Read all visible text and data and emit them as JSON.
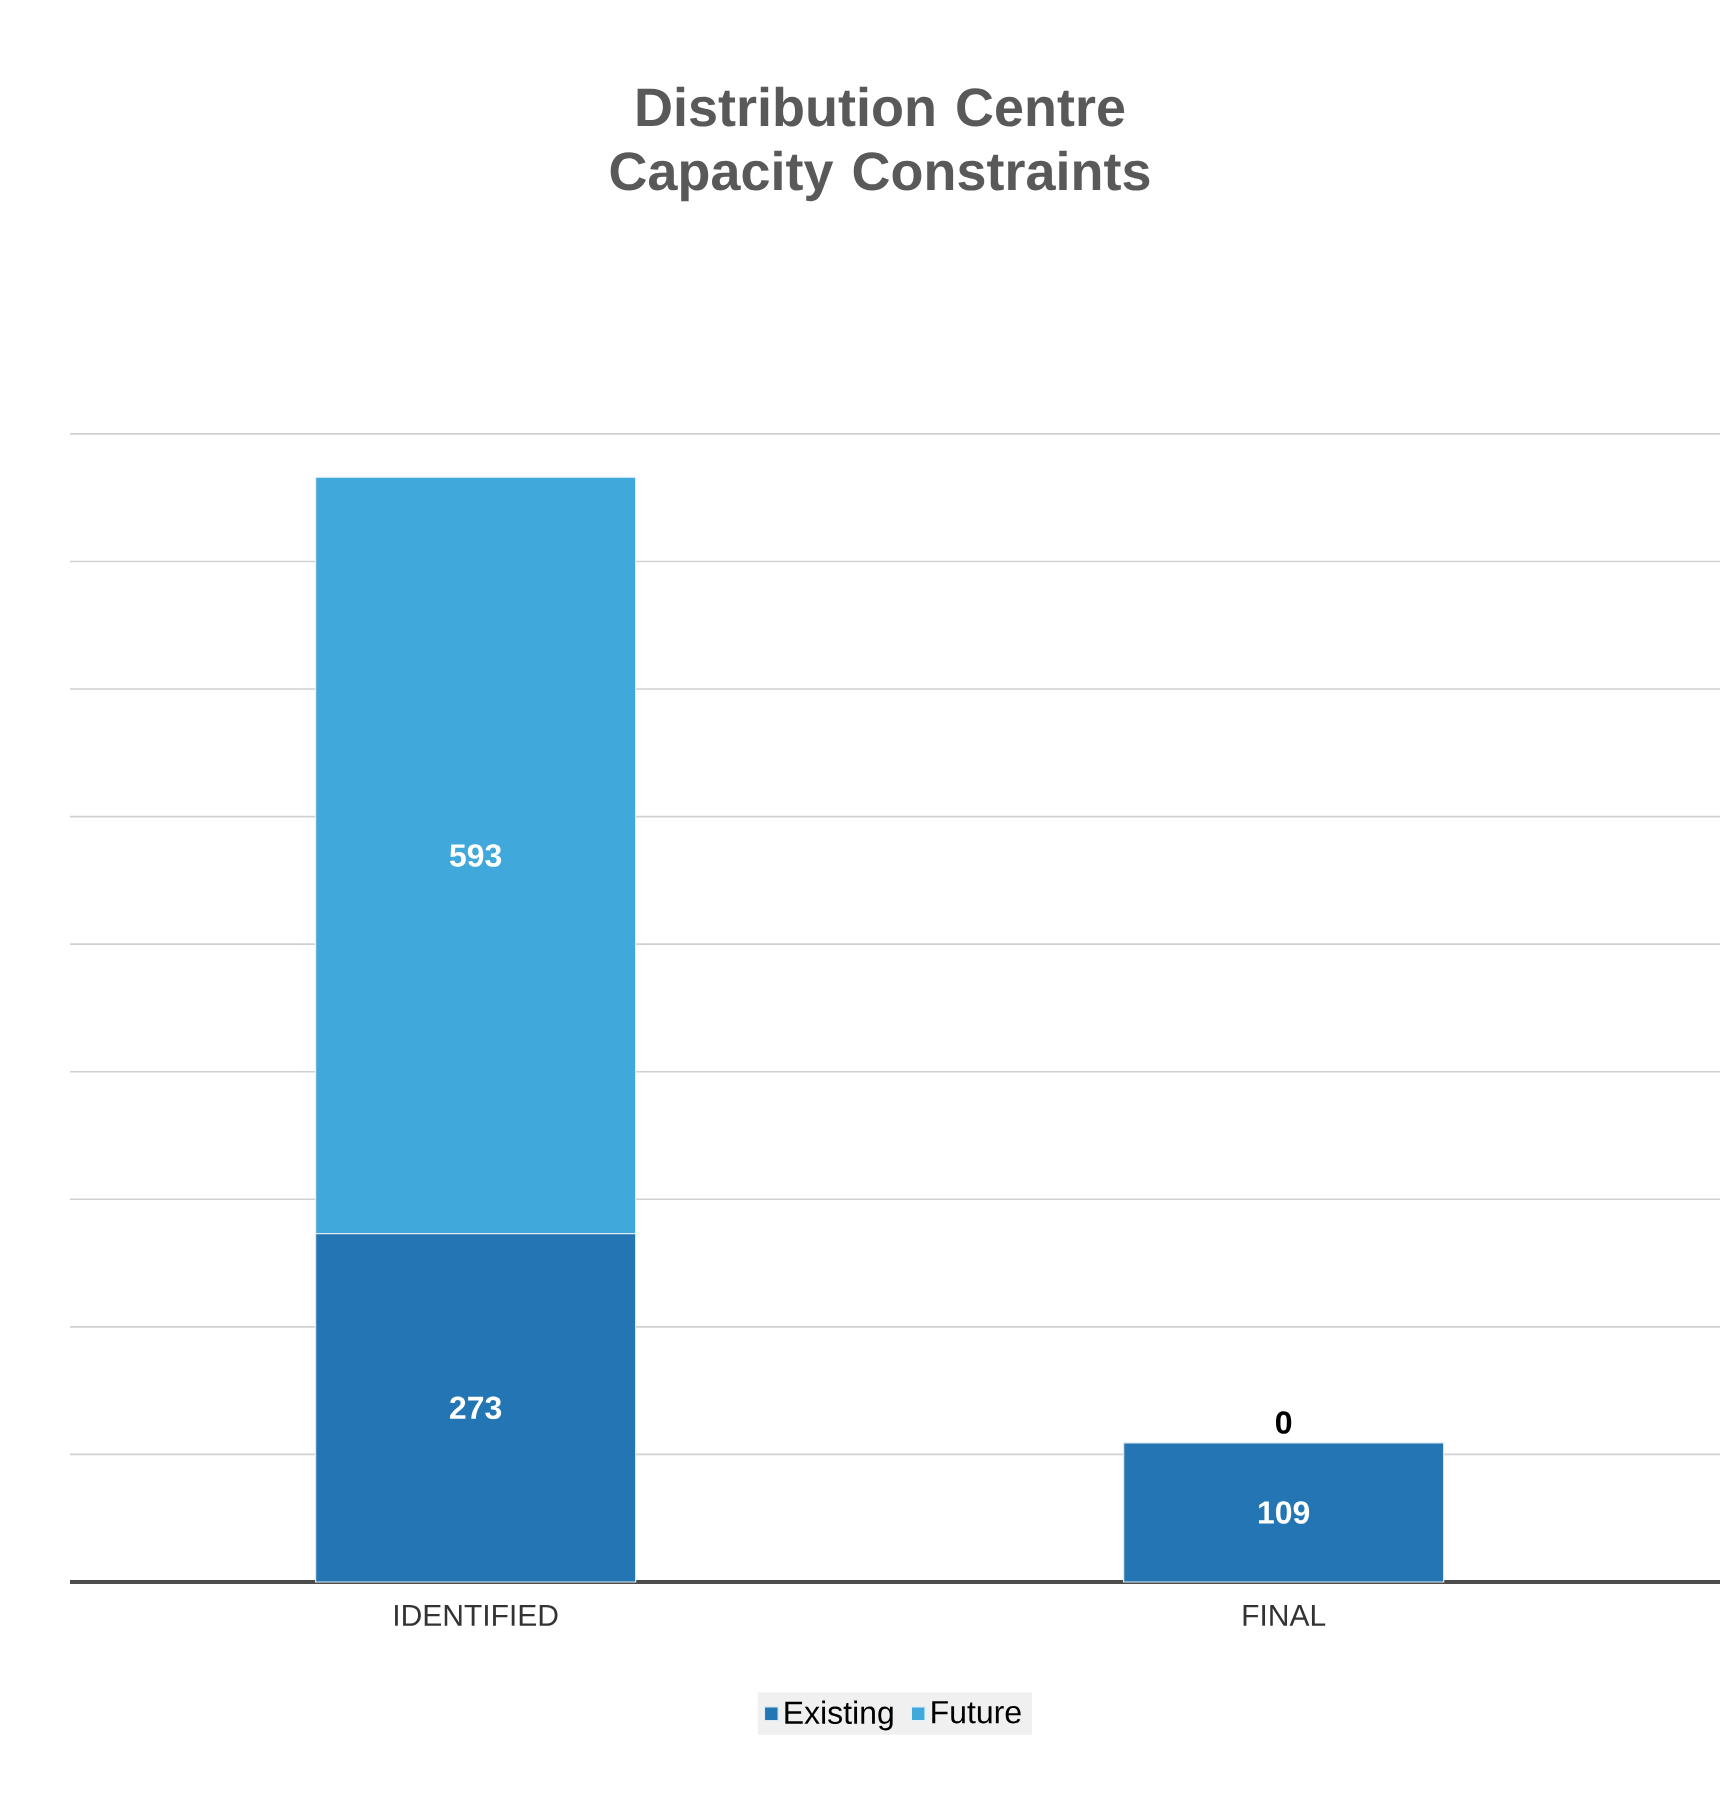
{
  "chart_data": {
    "type": "bar",
    "title": "Distribution Centre Capacity Constraints",
    "stacked": true,
    "categories": [
      "IDENTIFIED",
      "FINAL"
    ],
    "series": [
      {
        "name": "Existing",
        "color": "#2475b3",
        "values": [
          273,
          109
        ]
      },
      {
        "name": "Future",
        "color": "#41a8db",
        "values": [
          593,
          0
        ]
      }
    ],
    "grid": "y",
    "legend": "bottom",
    "tick_labels": "x",
    "data_labels": true
  }
}
